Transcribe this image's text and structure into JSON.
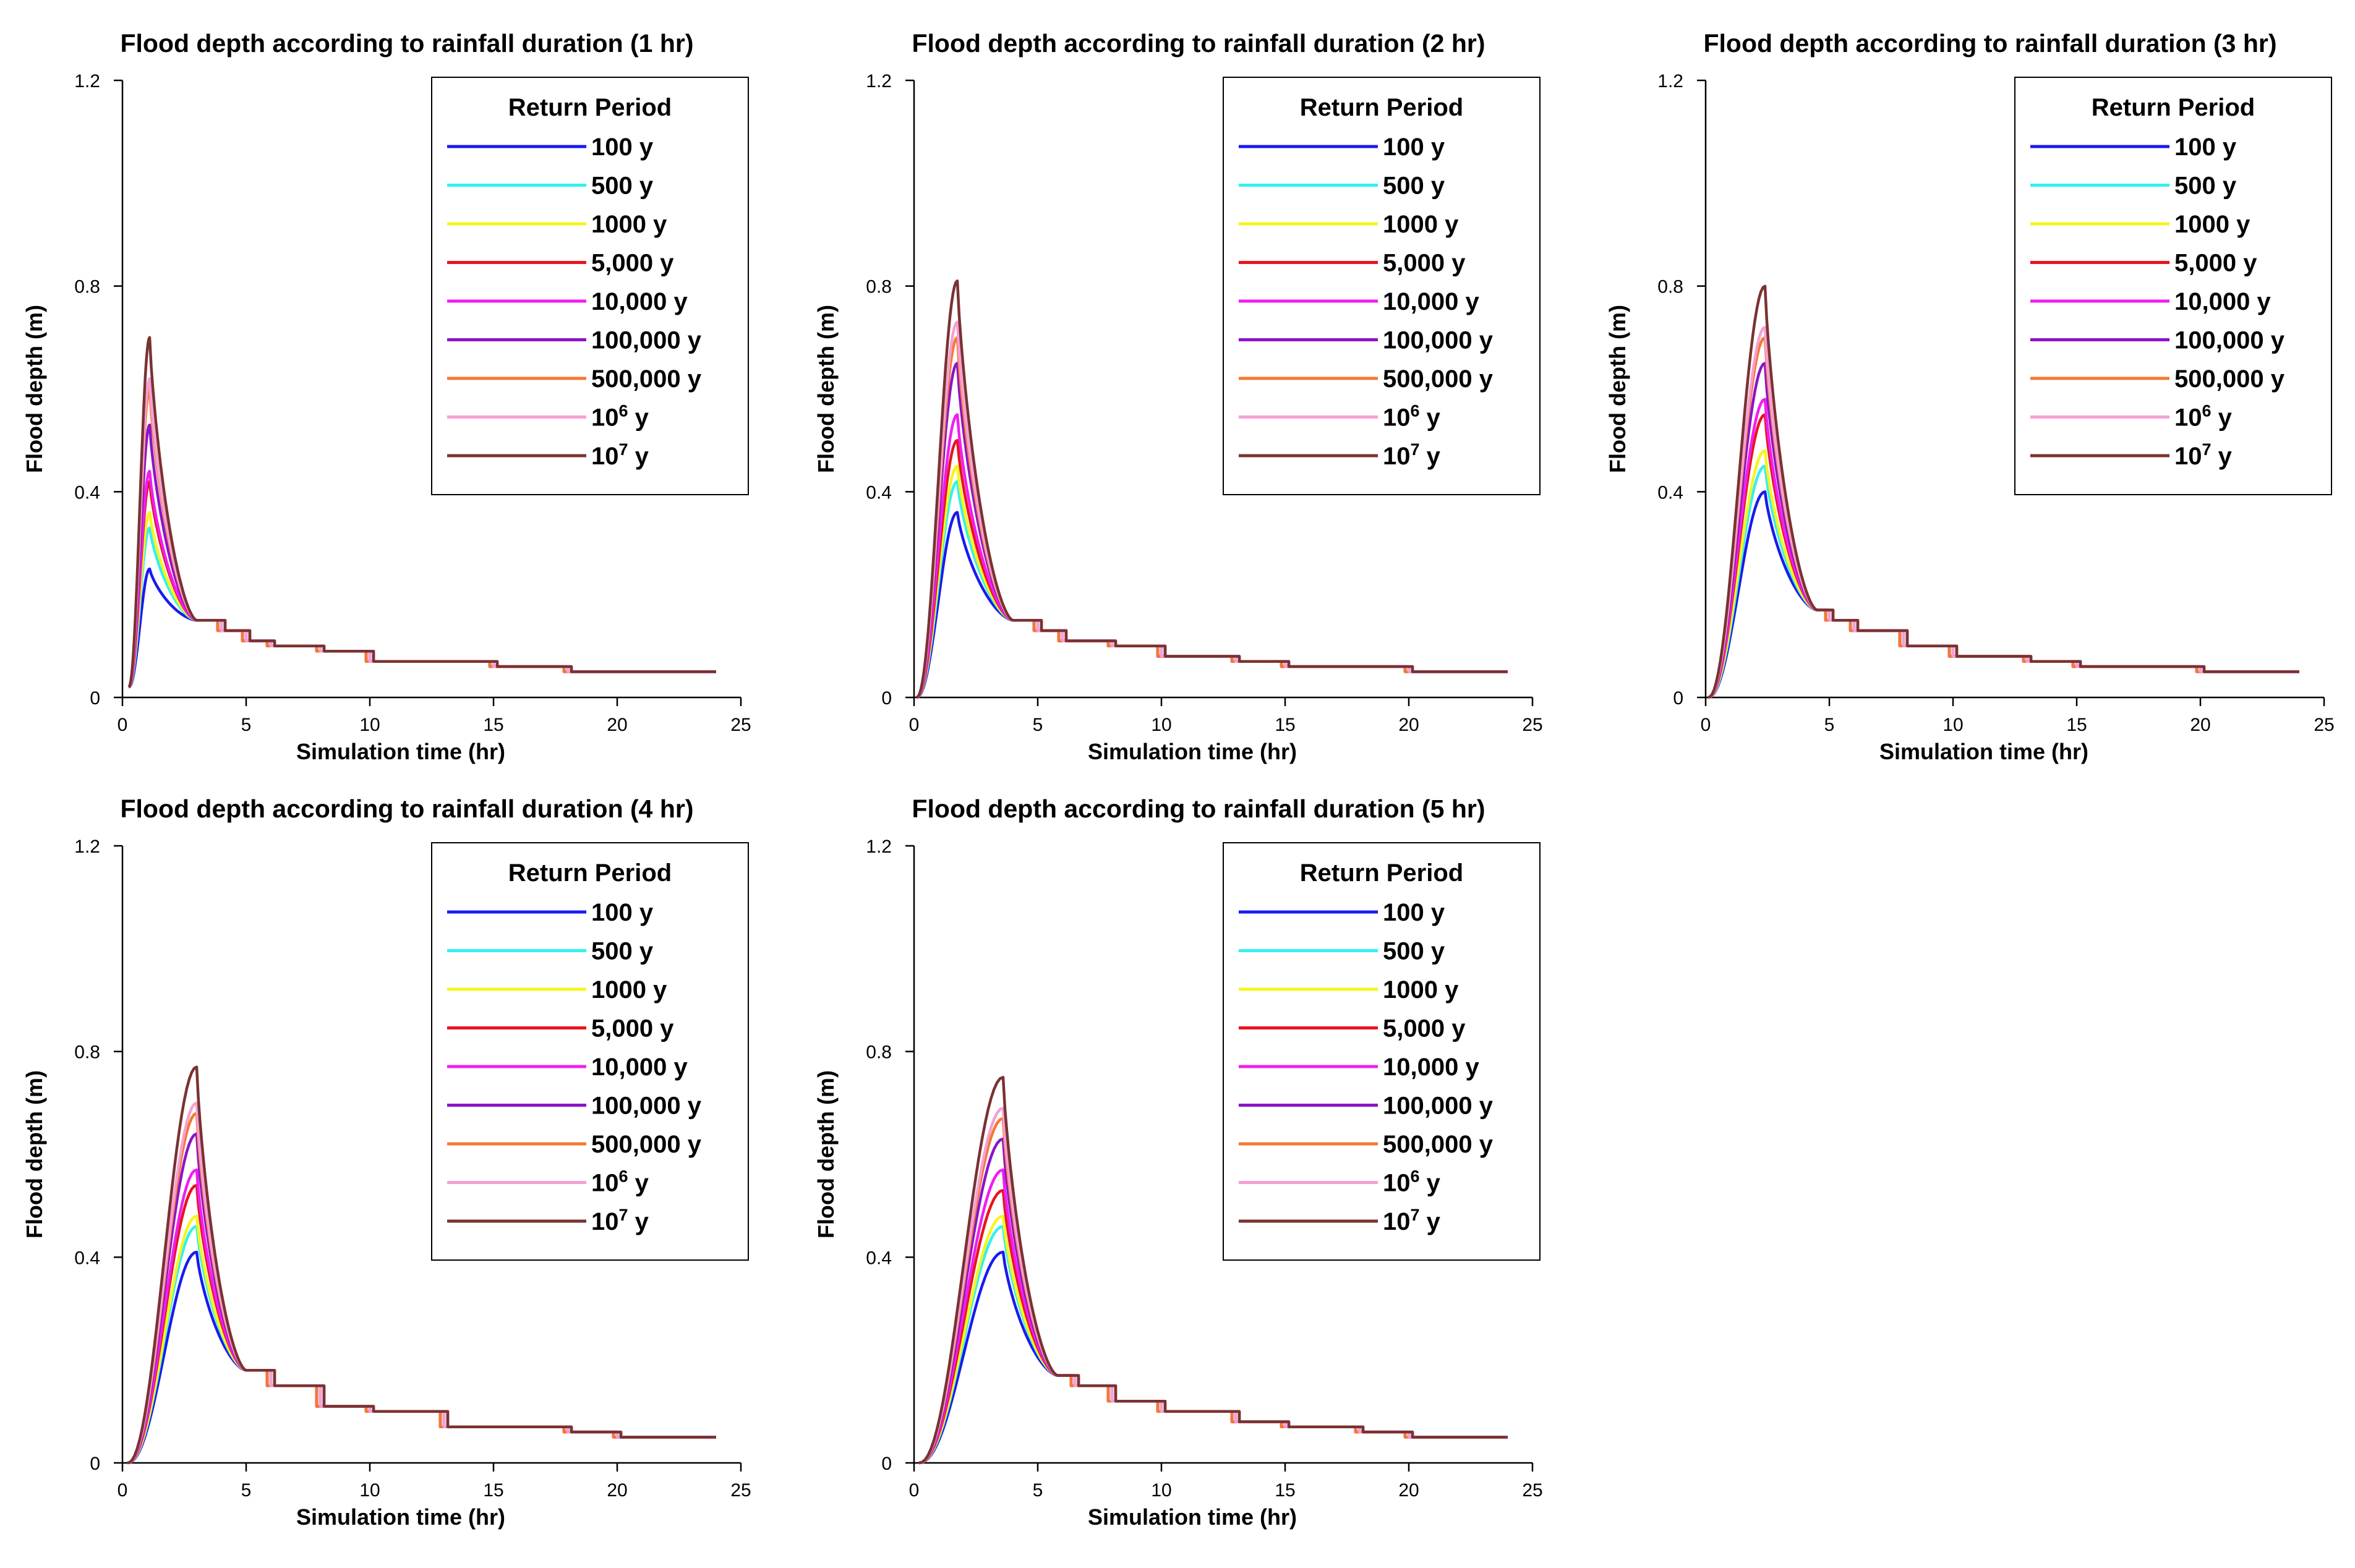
{
  "legend_title": "Return Period",
  "xlabel": "Simulation time (hr)",
  "ylabel": "Flood depth (m)",
  "x_ticks": [
    "0",
    "5",
    "10",
    "15",
    "20",
    "25"
  ],
  "y_ticks": [
    "0",
    "0.4",
    "0.8",
    "1.2"
  ],
  "series_style": [
    {
      "name": "100 y",
      "color": "#1a1aee"
    },
    {
      "name": "500 y",
      "color": "#33f0f0"
    },
    {
      "name": "1000 y",
      "color": "#f5f51e"
    },
    {
      "name": "5,000 y",
      "color": "#e8141e"
    },
    {
      "name": "10,000 y",
      "color": "#f01ef0"
    },
    {
      "name": "100,000 y",
      "color": "#8c14c8"
    },
    {
      "name": "500,000 y",
      "color": "#f57832"
    },
    {
      "name": "10^6 y",
      "color": "#f5a0d2"
    },
    {
      "name": "10^7 y",
      "color": "#7a3232"
    }
  ],
  "chart_data": [
    {
      "type": "line",
      "title": "Flood depth according to rainfall duration (1 hr)",
      "xlabel": "Simulation time (hr)",
      "ylabel": "Flood depth (m)",
      "xlim": [
        0,
        25
      ],
      "ylim": [
        0,
        1.2
      ],
      "grid": false,
      "legend_placement": "top-right",
      "peak_time": 1.1,
      "rise_start": 0.25,
      "initial_depth": 0.02,
      "peaks": [
        0.25,
        0.33,
        0.36,
        0.42,
        0.44,
        0.53,
        0.6,
        0.62,
        0.7
      ],
      "common_curve": {
        "x": [
          3,
          4,
          5,
          6,
          8,
          10,
          13,
          15,
          18,
          20,
          24
        ],
        "y": [
          0.15,
          0.13,
          0.11,
          0.1,
          0.09,
          0.07,
          0.07,
          0.06,
          0.05,
          0.05,
          0.05
        ]
      }
    },
    {
      "type": "line",
      "title": "Flood depth according to rainfall duration (2 hr)",
      "xlabel": "Simulation time (hr)",
      "ylabel": "Flood depth (m)",
      "xlim": [
        0,
        25
      ],
      "ylim": [
        0,
        1.2
      ],
      "grid": false,
      "legend_placement": "top-right",
      "peak_time": 1.75,
      "rise_start": 0.1,
      "initial_depth": 0.0,
      "peaks": [
        0.36,
        0.42,
        0.45,
        0.5,
        0.55,
        0.65,
        0.7,
        0.73,
        0.81
      ],
      "common_curve": {
        "x": [
          4,
          5,
          6,
          8,
          10,
          13,
          15,
          18,
          20,
          24
        ],
        "y": [
          0.15,
          0.13,
          0.11,
          0.1,
          0.08,
          0.07,
          0.06,
          0.06,
          0.05,
          0.05
        ]
      }
    },
    {
      "type": "line",
      "title": "Flood depth according to rainfall duration (3 hr)",
      "xlabel": "Simulation time (hr)",
      "ylabel": "Flood depth (m)",
      "xlim": [
        0,
        25
      ],
      "ylim": [
        0,
        1.2
      ],
      "grid": false,
      "legend_placement": "top-right",
      "peak_time": 2.4,
      "rise_start": 0.1,
      "initial_depth": 0.0,
      "peaks": [
        0.4,
        0.45,
        0.48,
        0.55,
        0.58,
        0.65,
        0.7,
        0.72,
        0.8
      ],
      "common_curve": {
        "x": [
          4.5,
          5,
          6,
          8,
          10,
          13,
          15,
          18,
          20,
          24
        ],
        "y": [
          0.17,
          0.15,
          0.13,
          0.1,
          0.08,
          0.07,
          0.06,
          0.06,
          0.05,
          0.05
        ]
      }
    },
    {
      "type": "line",
      "title": "Flood depth according to rainfall duration (4 hr)",
      "xlabel": "Simulation time (hr)",
      "ylabel": "Flood depth (m)",
      "xlim": [
        0,
        25
      ],
      "ylim": [
        0,
        1.2
      ],
      "grid": false,
      "legend_placement": "top-right",
      "peak_time": 3.0,
      "rise_start": 0.2,
      "initial_depth": 0.0,
      "peaks": [
        0.41,
        0.46,
        0.48,
        0.54,
        0.57,
        0.64,
        0.68,
        0.7,
        0.77
      ],
      "common_curve": {
        "x": [
          5,
          6,
          8,
          10,
          13,
          15,
          18,
          20,
          24
        ],
        "y": [
          0.18,
          0.15,
          0.11,
          0.1,
          0.07,
          0.07,
          0.06,
          0.05,
          0.05
        ]
      }
    },
    {
      "type": "line",
      "title": "Flood depth according to rainfall duration (5 hr)",
      "xlabel": "Simulation time (hr)",
      "ylabel": "Flood depth (m)",
      "xlim": [
        0,
        25
      ],
      "ylim": [
        0,
        1.2
      ],
      "grid": false,
      "legend_placement": "top-right",
      "peak_time": 3.6,
      "rise_start": 0.2,
      "initial_depth": 0.0,
      "peaks": [
        0.41,
        0.46,
        0.48,
        0.53,
        0.57,
        0.63,
        0.67,
        0.69,
        0.75
      ],
      "common_curve": {
        "x": [
          5.8,
          6.5,
          8,
          10,
          13,
          15,
          18,
          20,
          24
        ],
        "y": [
          0.17,
          0.15,
          0.12,
          0.1,
          0.08,
          0.07,
          0.06,
          0.05,
          0.05
        ]
      }
    }
  ]
}
